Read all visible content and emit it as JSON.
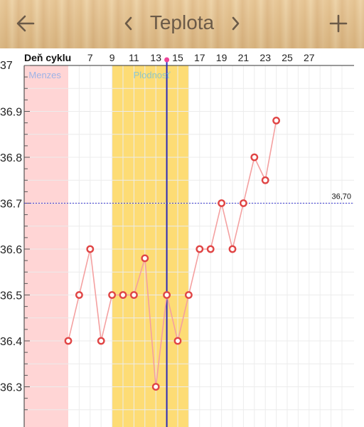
{
  "header": {
    "title": "Teplota",
    "back_icon": "arrow-left-icon",
    "prev_icon": "chevron-left-icon",
    "next_icon": "chevron-right-icon",
    "add_icon": "plus-icon"
  },
  "chart_data": {
    "type": "line",
    "xlabel": "Deň cyklu",
    "x_ticks": [
      7,
      9,
      11,
      13,
      15,
      17,
      19,
      21,
      23,
      25,
      27
    ],
    "y_ticks": [
      "37",
      "36.9",
      "36.8",
      "36.7",
      "36.6",
      "36.5",
      "36.4",
      "36.3"
    ],
    "x": [
      5,
      6,
      7,
      8,
      9,
      10,
      11,
      12,
      13,
      14,
      15,
      16,
      17,
      18,
      19,
      20,
      21,
      22,
      23,
      24
    ],
    "values": [
      36.4,
      36.5,
      36.6,
      36.4,
      36.5,
      36.5,
      36.5,
      36.58,
      36.3,
      36.5,
      36.4,
      36.5,
      36.6,
      36.6,
      36.7,
      36.6,
      36.7,
      36.8,
      36.75,
      36.88
    ],
    "regions": [
      {
        "label": "Menzes",
        "from": 1,
        "to": 5,
        "color": "#ffd5d5",
        "text_color": "#9db3e6"
      },
      {
        "label": "Plodnosť",
        "from": 9,
        "to": 16,
        "color": "#fddc75",
        "text_color": "#8fc6c6"
      }
    ],
    "threshold": {
      "value": 36.7,
      "label": "36,70",
      "color": "#3a3ad0"
    },
    "current_day": 14,
    "line_color": "#f4a0a0",
    "marker_color": "#e04545",
    "grid": true
  }
}
